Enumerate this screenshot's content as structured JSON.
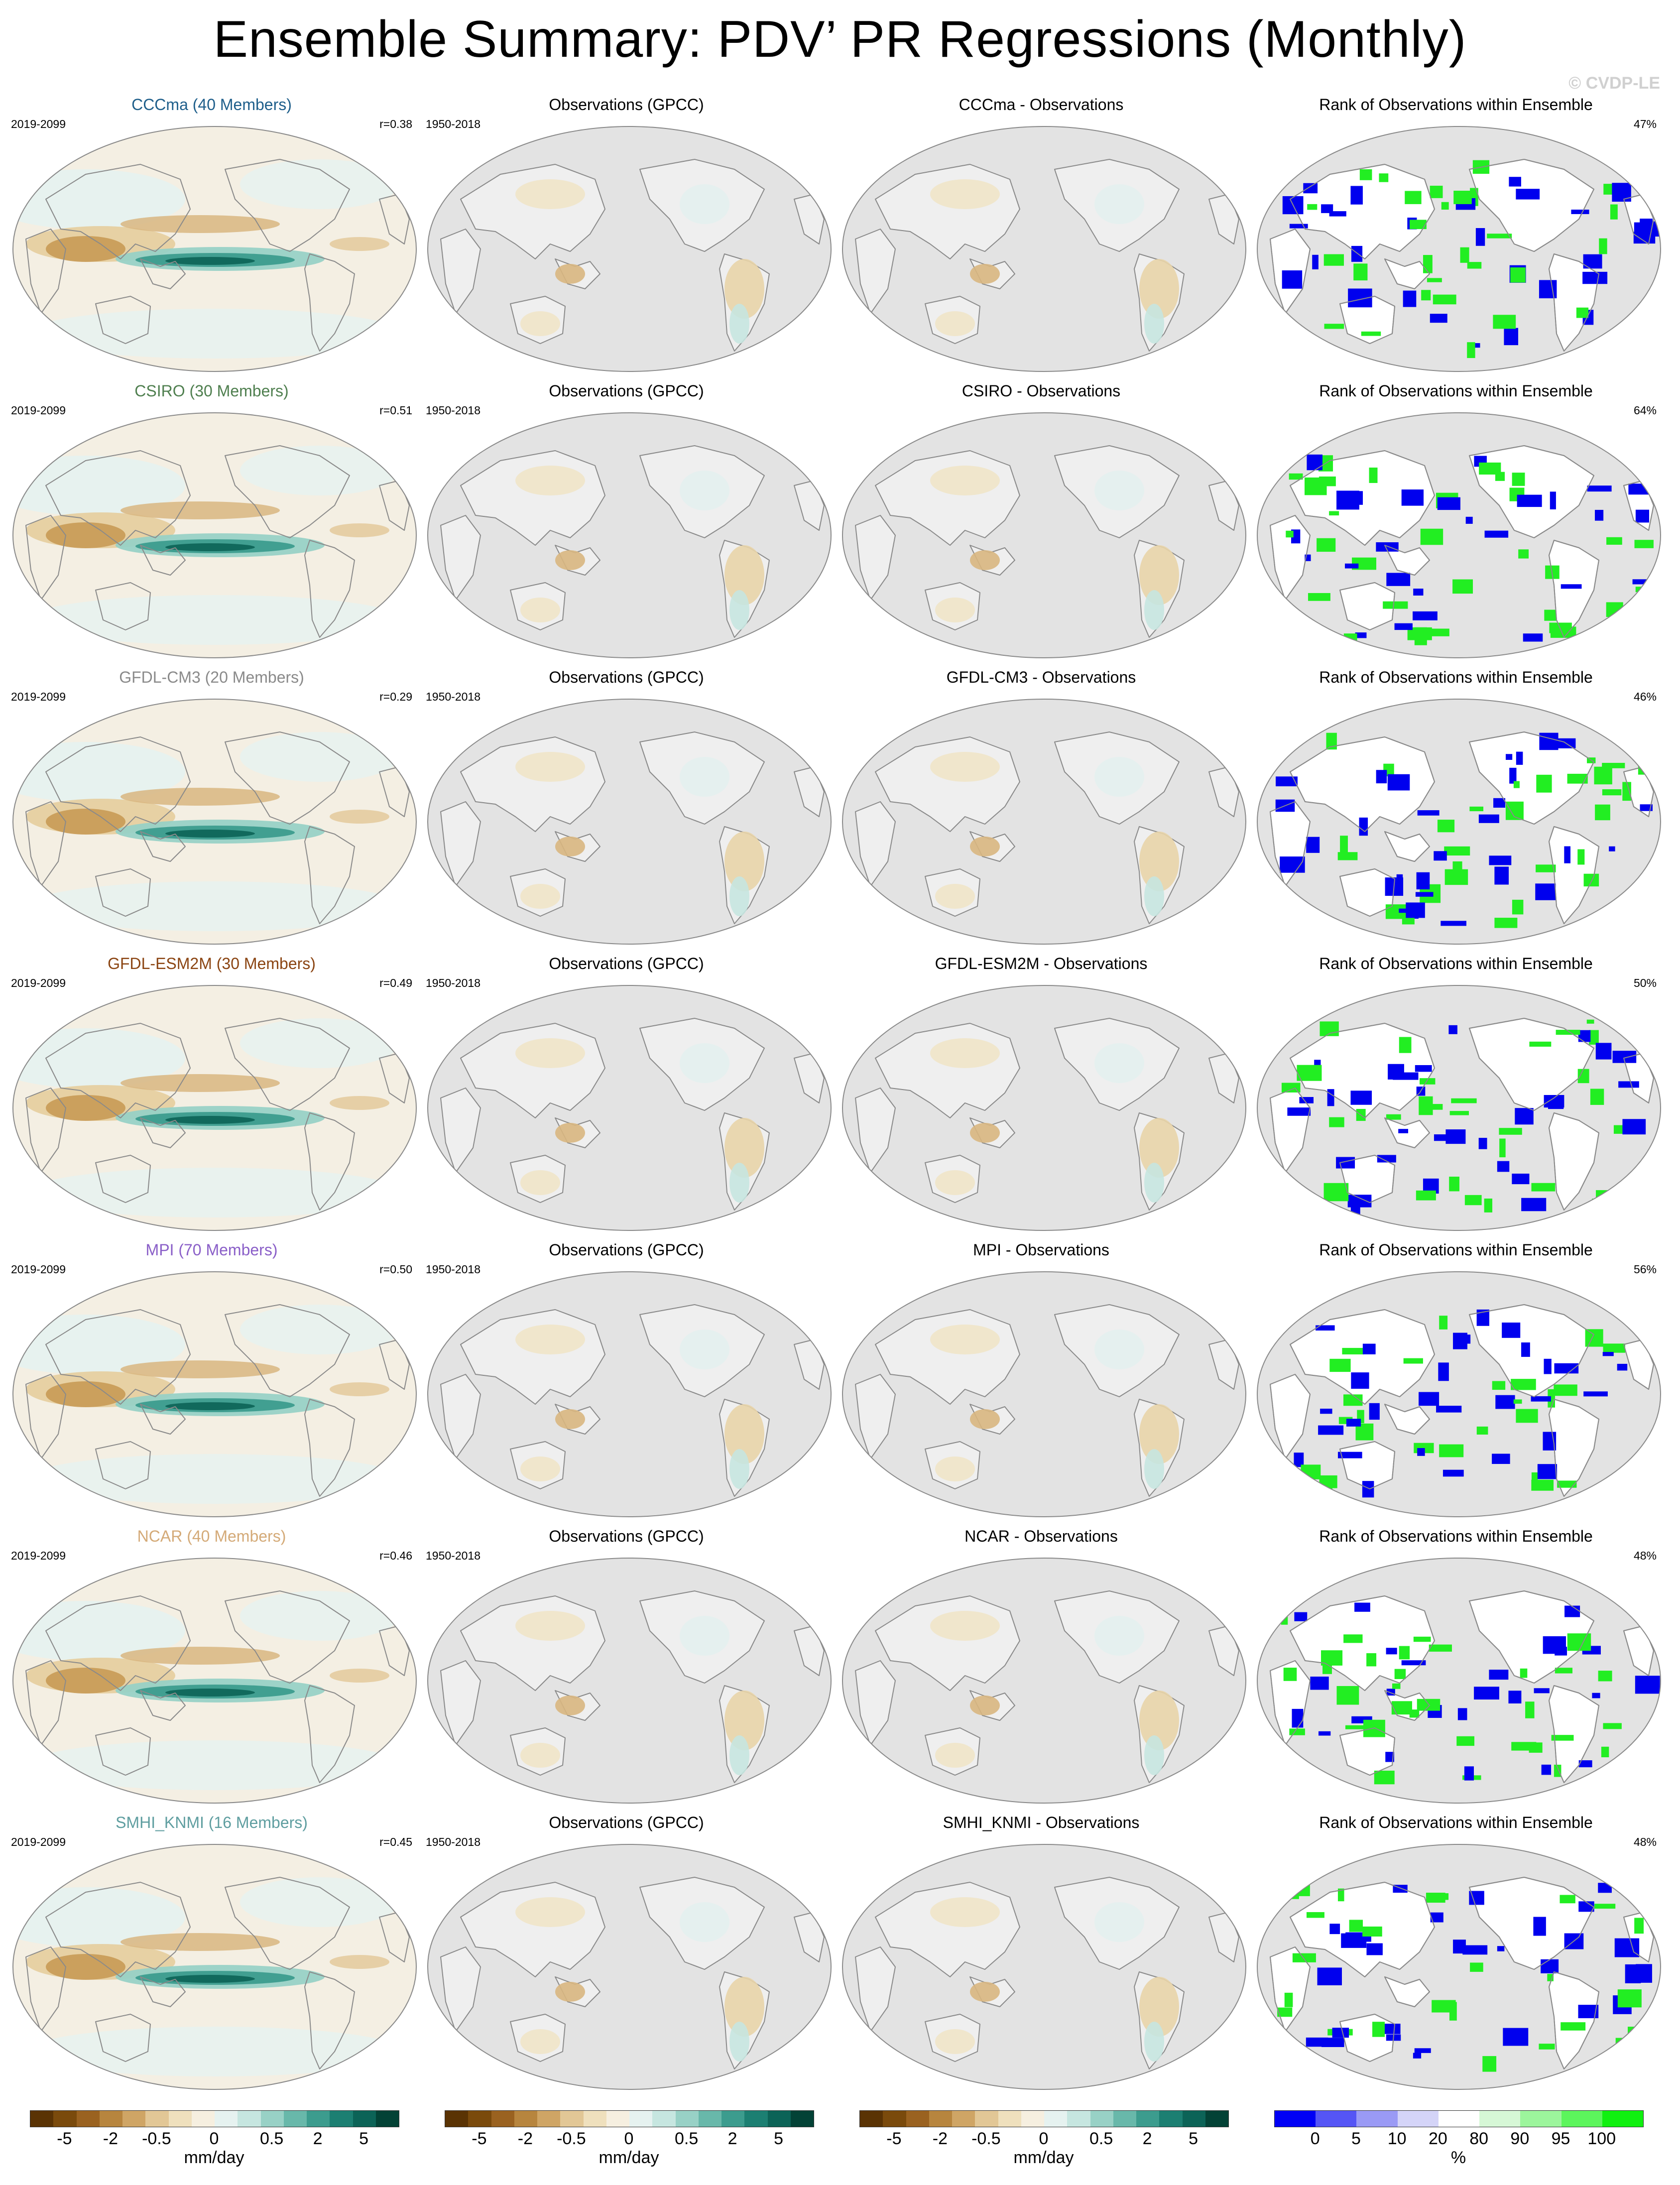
{
  "title": "Ensemble Summary: PDV’ PR Regressions (Monthly)",
  "watermark": "© CVDP-LE",
  "colors": {
    "ocean_gray": "#e0e0e0",
    "land_bg": "#ebebeb",
    "rank_blue": "#0000ee",
    "rank_green": "#22ee22",
    "brown_dark": "#6a3b07",
    "teal_dark": "#0f6b5d"
  },
  "rows": [
    {
      "model": "CCCma (40 Members)",
      "model_color": "#1f5f8b",
      "period": "2019-2099",
      "r": "r=0.38",
      "obs_title": "Observations (GPCC)",
      "obs_period": "1950-2018",
      "diff_title": "CCCma - Observations",
      "rank_title": "Rank of Observations within Ensemble",
      "rank_pct": "47%"
    },
    {
      "model": "CSIRO (30 Members)",
      "model_color": "#4f7f4f",
      "period": "2019-2099",
      "r": "r=0.51",
      "obs_title": "Observations (GPCC)",
      "obs_period": "1950-2018",
      "diff_title": "CSIRO - Observations",
      "rank_title": "Rank of Observations within Ensemble",
      "rank_pct": "64%"
    },
    {
      "model": "GFDL-CM3 (20 Members)",
      "model_color": "#8a8a8a",
      "period": "2019-2099",
      "r": "r=0.29",
      "obs_title": "Observations (GPCC)",
      "obs_period": "1950-2018",
      "diff_title": "GFDL-CM3 - Observations",
      "rank_title": "Rank of Observations within Ensemble",
      "rank_pct": "46%"
    },
    {
      "model": "GFDL-ESM2M (30 Members)",
      "model_color": "#8b4513",
      "period": "2019-2099",
      "r": "r=0.49",
      "obs_title": "Observations (GPCC)",
      "obs_period": "1950-2018",
      "diff_title": "GFDL-ESM2M - Observations",
      "rank_title": "Rank of Observations within Ensemble",
      "rank_pct": "50%"
    },
    {
      "model": "MPI (70 Members)",
      "model_color": "#8a5fc8",
      "period": "2019-2099",
      "r": "r=0.50",
      "obs_title": "Observations (GPCC)",
      "obs_period": "1950-2018",
      "diff_title": "MPI - Observations",
      "rank_title": "Rank of Observations within Ensemble",
      "rank_pct": "56%"
    },
    {
      "model": "NCAR (40 Members)",
      "model_color": "#d4aa78",
      "period": "2019-2099",
      "r": "r=0.46",
      "obs_title": "Observations (GPCC)",
      "obs_period": "1950-2018",
      "diff_title": "NCAR - Observations",
      "rank_title": "Rank of Observations within Ensemble",
      "rank_pct": "48%"
    },
    {
      "model": "SMHI_KNMI (16 Members)",
      "model_color": "#5f9ea0",
      "period": "2019-2099",
      "r": "r=0.45",
      "obs_title": "Observations (GPCC)",
      "obs_period": "1950-2018",
      "diff_title": "SMHI_KNMI - Observations",
      "rank_title": "Rank of Observations within Ensemble",
      "rank_pct": "48%"
    }
  ],
  "colorbars": [
    {
      "kind": "div",
      "ticks": [
        "-5",
        "-2",
        "-0.5",
        "0",
        "0.5",
        "2",
        "5"
      ],
      "unit": "mm/day"
    },
    {
      "kind": "div",
      "ticks": [
        "-5",
        "-2",
        "-0.5",
        "0",
        "0.5",
        "2",
        "5"
      ],
      "unit": "mm/day"
    },
    {
      "kind": "div",
      "ticks": [
        "-5",
        "-2",
        "-0.5",
        "0",
        "0.5",
        "2",
        "5"
      ],
      "unit": "mm/day"
    },
    {
      "kind": "rank",
      "ticks": [
        "0",
        "5",
        "10",
        "20",
        "80",
        "90",
        "95",
        "100"
      ],
      "unit": "%"
    }
  ],
  "div_colors": [
    "#5a3304",
    "#7a4a0c",
    "#9a6220",
    "#b7853e",
    "#cfa565",
    "#e2c796",
    "#efe0bd",
    "#f6efe0",
    "#e6f2f0",
    "#c6e6e0",
    "#98d1c6",
    "#68b8aa",
    "#3c9c8e",
    "#1c7f72",
    "#0c6357",
    "#034236"
  ],
  "rank_colors": [
    "#0000f5",
    "#5555f5",
    "#9a9af5",
    "#d4d4f8",
    "#ffffff",
    "#d6f7d6",
    "#9cf59c",
    "#5cf55c",
    "#10f010"
  ]
}
